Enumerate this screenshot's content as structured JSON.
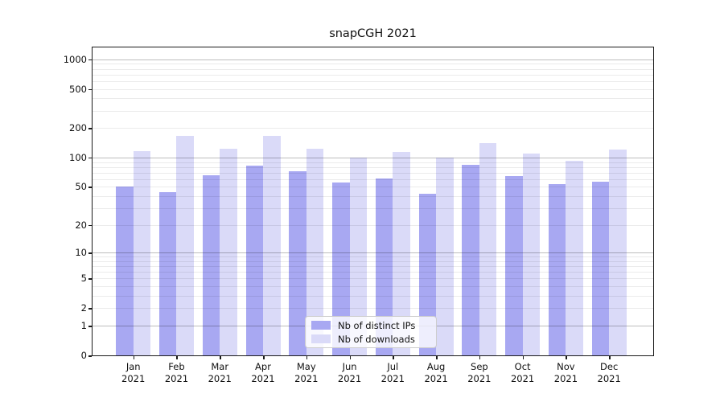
{
  "chart_data": {
    "type": "bar",
    "title": "snapCGH 2021",
    "categories": [
      "Jan 2021",
      "Feb 2021",
      "Mar 2021",
      "Apr 2021",
      "May 2021",
      "Jun 2021",
      "Jul 2021",
      "Aug 2021",
      "Sep 2021",
      "Oct 2021",
      "Nov 2021",
      "Dec 2021"
    ],
    "series": [
      {
        "name": "Nb of distinct IPs",
        "color": "#a8a8f2",
        "values": [
          50,
          44,
          66,
          82,
          73,
          55,
          61,
          42,
          85,
          64,
          53,
          57
        ]
      },
      {
        "name": "Nb of downloads",
        "color": "#dadaf8",
        "values": [
          116,
          168,
          124,
          167,
          124,
          100,
          115,
          100,
          141,
          110,
          93,
          120
        ]
      }
    ],
    "xlabel": "",
    "ylabel": "",
    "y_axis": {
      "scale": "log(1+y)",
      "tick_values": [
        0,
        1,
        2,
        5,
        10,
        20,
        50,
        100,
        200,
        500,
        1000
      ],
      "ylim": [
        0,
        1318
      ]
    },
    "grid": "major and minor horizontal gridlines",
    "legend_position": "lower center"
  },
  "colors": {
    "major_grid": "#bdbdbd",
    "minor_grid": "#e9e9e9",
    "axis": "#1a1a1a",
    "background": "#ffffff"
  }
}
